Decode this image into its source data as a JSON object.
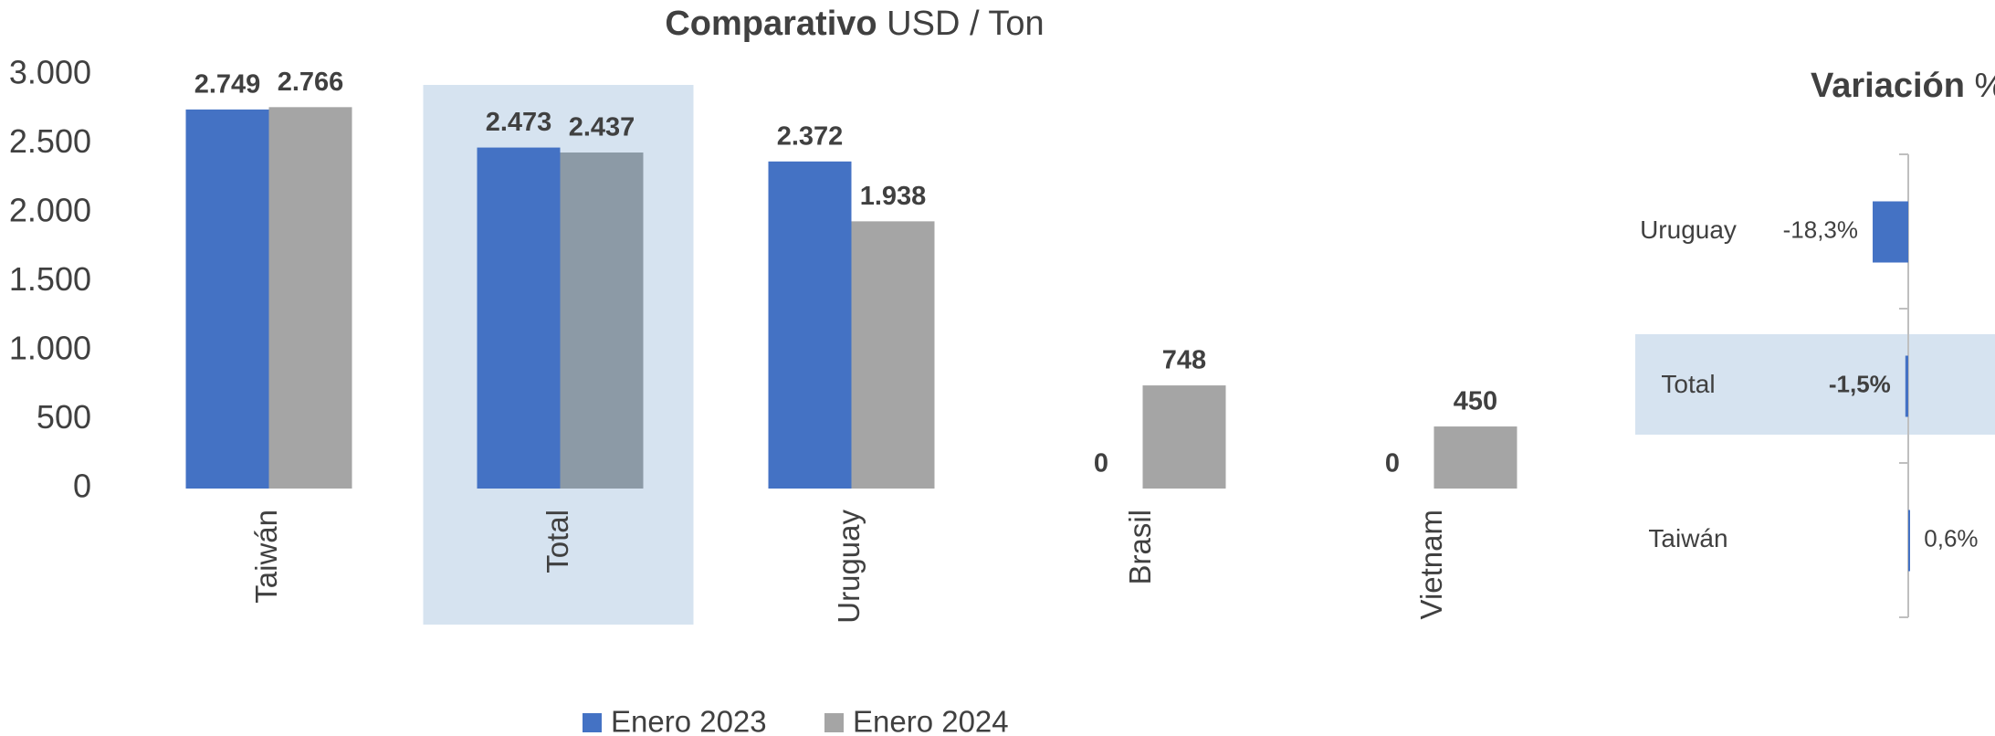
{
  "chart_data": [
    {
      "type": "bar",
      "title": [
        "Comparativo",
        "USD / Ton"
      ],
      "categories": [
        "Taiwán",
        "Total",
        "Uruguay",
        "Brasil",
        "Vietnam"
      ],
      "series": [
        {
          "name": "Enero 2023",
          "color": "#4472c4",
          "label_color": "#2b5585",
          "values": [
            2749,
            2473,
            2372,
            0,
            0
          ],
          "value_labels": [
            "2.749",
            "2.473",
            "2.372",
            "0",
            "0"
          ]
        },
        {
          "name": "Enero 2024",
          "color": "#a5a5a5",
          "label_color": "#404040",
          "values": [
            2766,
            2437,
            1938,
            748,
            450
          ],
          "value_labels": [
            "2.766",
            "2.437",
            "1.938",
            "748",
            "450"
          ]
        }
      ],
      "highlight": 1,
      "highlight_band_color": "#d6e3f0",
      "highlight_bar_color": "#8c9aa6",
      "ylim": [
        0,
        3000
      ],
      "yticks": [
        0,
        500,
        {
          "value": 1000,
          "label": "1.000"
        },
        {
          "value": 1500,
          "label": "1.500"
        },
        {
          "value": 2000,
          "label": "2.000"
        },
        {
          "value": 2500,
          "label": "2.500"
        },
        {
          "value": 3000,
          "label": "3.000"
        }
      ],
      "legend": "bottom"
    },
    {
      "type": "hbar",
      "title": [
        "Variación",
        "%"
      ],
      "categories": [
        "Uruguay",
        "Total",
        "Taiwán"
      ],
      "values": [
        -18.3,
        -1.5,
        0.6
      ],
      "value_labels": [
        "-18,3%",
        "-1,5%",
        "0,6%"
      ],
      "color": "#4472c4",
      "highlight": 1,
      "highlight_band_color": "#d6e3f0",
      "xlim": [
        -100,
        100
      ]
    }
  ]
}
